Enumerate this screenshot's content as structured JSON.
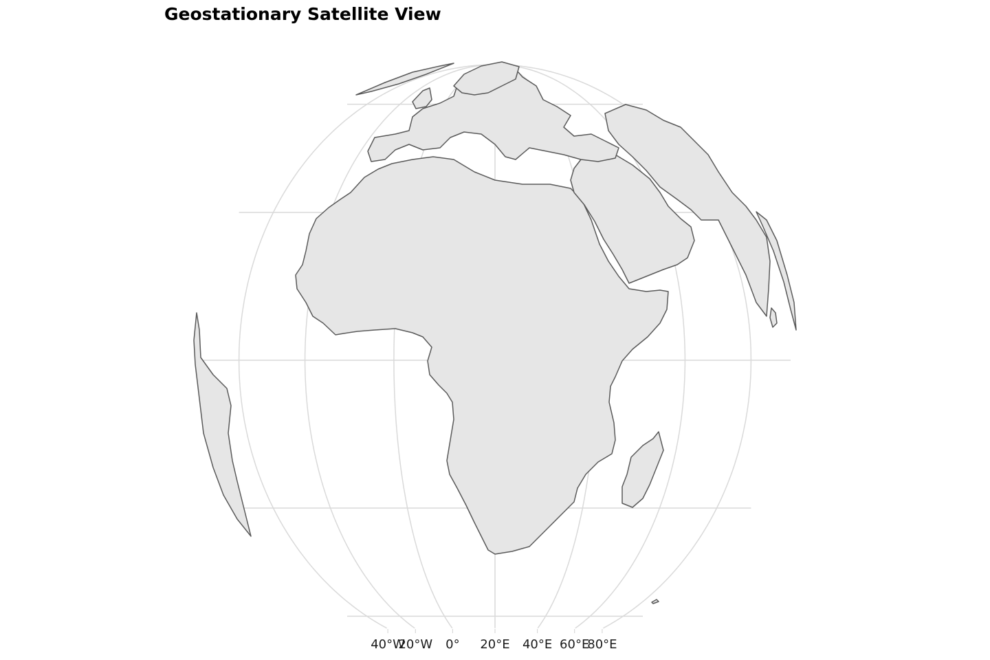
{
  "title": "Geostationary Satellite View",
  "projection": {
    "type": "orthographic",
    "center_lon": 20,
    "center_lat": 0
  },
  "colors": {
    "land_fill": "#e6e6e6",
    "land_border": "#595959",
    "graticule": "#d9d9d9",
    "background": "#ffffff"
  },
  "graticule": {
    "meridians": [
      -40,
      -20,
      0,
      20,
      40,
      60,
      80
    ],
    "parallels": [
      -60,
      -30,
      0,
      30,
      60
    ]
  },
  "lon_labels": [
    {
      "lon": -40,
      "text": "40°W"
    },
    {
      "lon": -20,
      "text": "20°W"
    },
    {
      "lon": 0,
      "text": "0°"
    },
    {
      "lon": 20,
      "text": "20°E"
    },
    {
      "lon": 40,
      "text": "40°E"
    },
    {
      "lon": 60,
      "text": "60°E"
    },
    {
      "lon": 80,
      "text": "80°E"
    }
  ]
}
